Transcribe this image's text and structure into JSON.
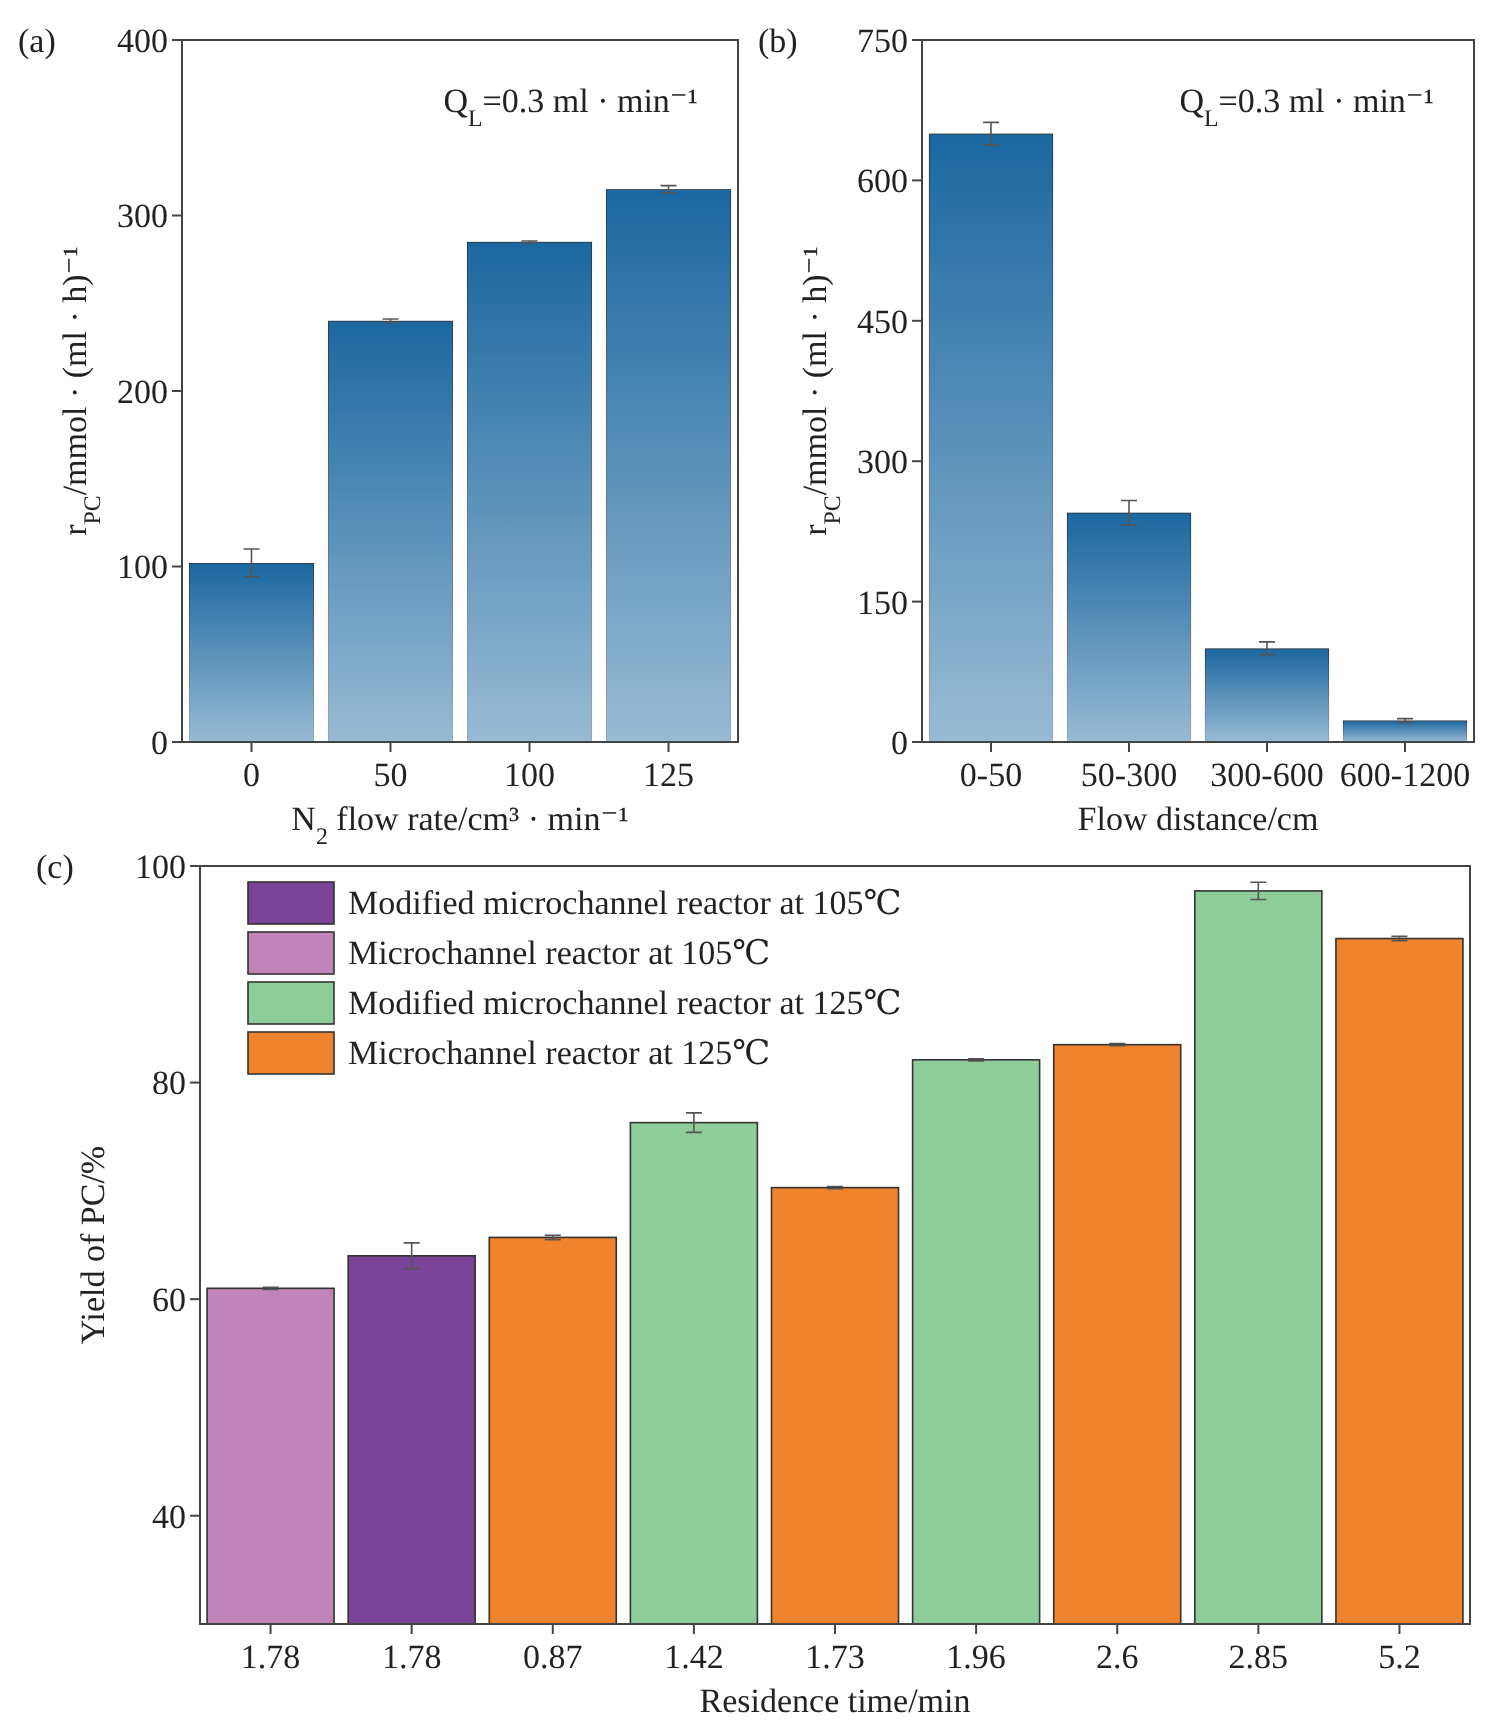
{
  "chart_data": [
    {
      "type": "bar",
      "title": "(a)",
      "xlabel": "N$_{2}$ flow rate/cm³ · min⁻¹",
      "ylabel": "r$_{PC}$/mmol · (ml · h)⁻¹",
      "annotations": [
        "Q$_{L}$=0.3  ml · min⁻¹"
      ],
      "categories": [
        "0",
        "50",
        "100",
        "125"
      ],
      "series": [
        {
          "color": "#1a67a0",
          "values": [
            102,
            240,
            285,
            315
          ],
          "errors": [
            8,
            1,
            0.5,
            2
          ]
        }
      ],
      "ylim": [
        0,
        400
      ],
      "yticks": [
        0,
        100,
        200,
        300,
        400
      ],
      "grid": false,
      "legend": false
    },
    {
      "type": "bar",
      "title": "(b)",
      "xlabel": "Flow distance/cm",
      "ylabel": "r$_{PC}$/mmol · (ml · h)⁻¹",
      "annotations": [
        "Q$_{L}$=0.3  ml · min⁻¹"
      ],
      "categories": [
        "0-50",
        "50-300",
        "300-600",
        "600-1200"
      ],
      "series": [
        {
          "color": "#1a67a0",
          "values": [
            650,
            245,
            100,
            23
          ],
          "errors": [
            12,
            13,
            7,
            2
          ]
        }
      ],
      "ylim": [
        0,
        750
      ],
      "yticks": [
        0,
        150,
        300,
        450,
        600,
        750
      ],
      "grid": false,
      "legend": false
    },
    {
      "type": "bar",
      "title": "(c)",
      "xlabel": "Residence time/min",
      "ylabel": "Yield of PC/%",
      "categories": [
        "1.78",
        "1.78",
        "0.87",
        "1.42",
        "1.73",
        "1.96",
        "2.6",
        "2.85",
        "5.2"
      ],
      "series": [
        {
          "name": "Modified microchannel reactor at 105℃",
          "color": "#7b4397",
          "values": [
            null,
            64,
            null,
            null,
            null,
            null,
            null,
            null,
            null
          ],
          "errors": [
            null,
            1.2,
            null,
            null,
            null,
            null,
            null,
            null,
            null
          ]
        },
        {
          "name": "Microchannel reactor at 105℃",
          "color": "#c184b8",
          "values": [
            61,
            null,
            null,
            null,
            null,
            null,
            null,
            null,
            null
          ],
          "errors": [
            0.1,
            null,
            null,
            null,
            null,
            null,
            null,
            null,
            null
          ]
        },
        {
          "name": "Modified microchannel reactor at 125℃",
          "color": "#8ecd9a",
          "values": [
            null,
            null,
            null,
            76.3,
            null,
            82.1,
            null,
            97.7,
            null
          ],
          "errors": [
            null,
            null,
            null,
            0.9,
            null,
            0.1,
            null,
            0.8,
            null
          ]
        },
        {
          "name": "Microchannel reactor at 125℃",
          "color": "#f0832d",
          "values": [
            null,
            null,
            65.7,
            null,
            70.3,
            null,
            83.5,
            null,
            93.3
          ],
          "errors": [
            null,
            null,
            0.2,
            null,
            0.1,
            null,
            0.1,
            null,
            0.2
          ]
        }
      ],
      "ylim": [
        30,
        100
      ],
      "yticks": [
        40,
        60,
        80,
        100
      ],
      "grid": false,
      "legend": "top left"
    }
  ]
}
